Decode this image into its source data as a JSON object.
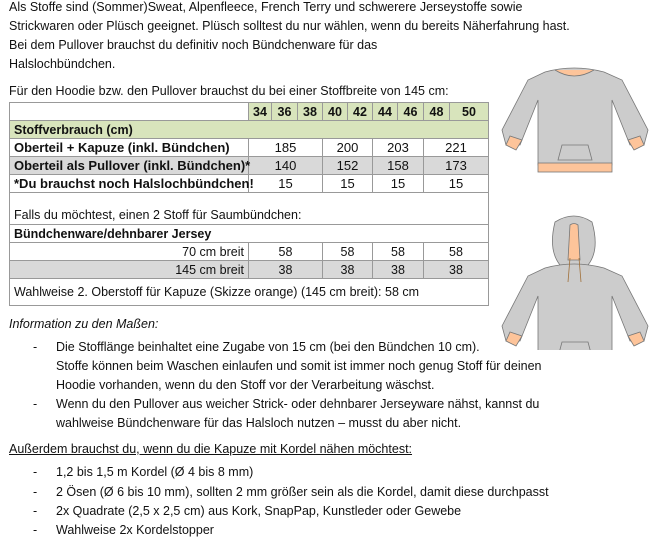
{
  "intro": [
    "Als Stoffe sind (Sommer)Sweat, Alpenfleece, French Terry und schwerere Jerseystoffe sowie",
    "Strickwaren oder Plüsch geeignet. Plüsch solltest du nur wählen, wenn du bereits Näherfahrung hast.",
    "Bei dem Pullover brauchst du definitiv noch Bündchenware für das",
    "Halslochbündchen."
  ],
  "table_caption": "Für den Hoodie bzw. den Pullover brauchst du bei einer Stoffbreite von 145 cm:",
  "table": {
    "sizes": [
      "34",
      "36",
      "38",
      "40",
      "42",
      "44",
      "46",
      "48",
      "50"
    ],
    "section": "Stoffverbrauch (cm)",
    "rows": [
      {
        "label": "Oberteil + Kapuze (inkl. Bündchen)",
        "values": [
          "185",
          "200",
          "203",
          "221"
        ]
      },
      {
        "label": "Oberteil als Pullover (inkl. Bündchen)*",
        "values": [
          "140",
          "152",
          "158",
          "173"
        ]
      },
      {
        "label": "*Du brauchst noch Halslochbündchen!",
        "values": [
          "15",
          "15",
          "15",
          "15"
        ]
      }
    ],
    "note": "Falls du möchtest, einen 2 Stoff für Saumbündchen:",
    "sub_section": "Bündchenware/dehnbarer Jersey",
    "sub_rows": [
      {
        "label": "70 cm breit",
        "values": [
          "58",
          "58",
          "58",
          "58"
        ]
      },
      {
        "label": "145 cm breit",
        "values": [
          "38",
          "38",
          "38",
          "38"
        ]
      }
    ],
    "footer": "Wahlweise 2. Oberstoff für Kapuze (Skizze orange) (145 cm breit): 58 cm"
  },
  "info": {
    "heading": "Information zu den Maßen:",
    "bullets": [
      [
        "Die Stofflänge beinhaltet eine Zugabe von 15 cm (bei den Bündchen 10 cm).",
        "Stoffe können beim Waschen einlaufen und somit ist immer noch genug Stoff für deinen",
        "Hoodie vorhanden, wenn du den Stoff vor der Verarbeitung wäschst."
      ],
      [
        "Wenn du den Pullover aus weicher Strick- oder dehnbarer Jerseyware nähst, kannst du",
        "wahlweise Bündchenware für das Halsloch nutzen – musst du aber nicht."
      ]
    ]
  },
  "extra": {
    "heading": "Außerdem brauchst du, wenn du die Kapuze mit Kordel nähen möchtest:",
    "bullets": [
      "1,2 bis 1,5 m Kordel (Ø 4 bis 8 mm)",
      "2 Ösen (Ø 6 bis 10 mm), sollten 2 mm größer sein als die Kordel, damit diese durchpasst",
      "2x Quadrate (2,5 x 2,5 cm) aus Kork, SnapPap, Kunstleder oder Gewebe",
      "Wahlweise 2x Kordelstopper"
    ]
  },
  "bullet_char": "-",
  "colors": {
    "header_green": "#d8e4bc",
    "row_gray": "#d9d9d9",
    "garment": "#cccccc",
    "accent_orange": "#fdc49a"
  }
}
